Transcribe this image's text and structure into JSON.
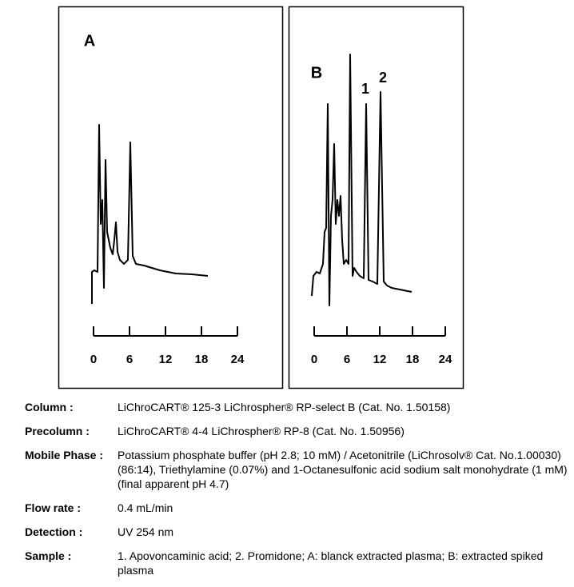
{
  "panels": [
    {
      "label": "A",
      "xlim": [
        0,
        24
      ],
      "xticks": [
        0,
        6,
        12,
        18,
        24
      ]
    },
    {
      "label": "B",
      "peak_labels": [
        "1",
        "2"
      ],
      "xlim": [
        0,
        24
      ],
      "xticks": [
        0,
        6,
        12,
        18,
        24
      ]
    }
  ],
  "parameters": [
    {
      "key": "Column :",
      "value": "LiChroCART® 125-3 LiChrospher® RP-select B  (Cat. No. 1.50158)"
    },
    {
      "key": "Precolumn :",
      "value": "LiChroCART® 4-4 LiChrospher® RP-8  (Cat. No. 1.50956)"
    },
    {
      "key": "Mobile Phase :",
      "value": "Potassium phosphate buffer (pH 2.8; 10 mM) / Acetonitrile (LiChrosolv® Cat. No.1.00030) (86:14), Triethylamine (0.07%) and 1-Octanesulfonic acid sodium salt monohydrate (1 mM) (final apparent pH 4.7)"
    },
    {
      "key": "Flow rate :",
      "value": "0.4 mL/min"
    },
    {
      "key": "Detection :",
      "value": "UV 254 nm"
    },
    {
      "key": "Sample :",
      "value": "1. Apovoncaminic acid; 2. Promidone; A: blanck extracted plasma; B: extracted spiked plasma"
    }
  ]
}
